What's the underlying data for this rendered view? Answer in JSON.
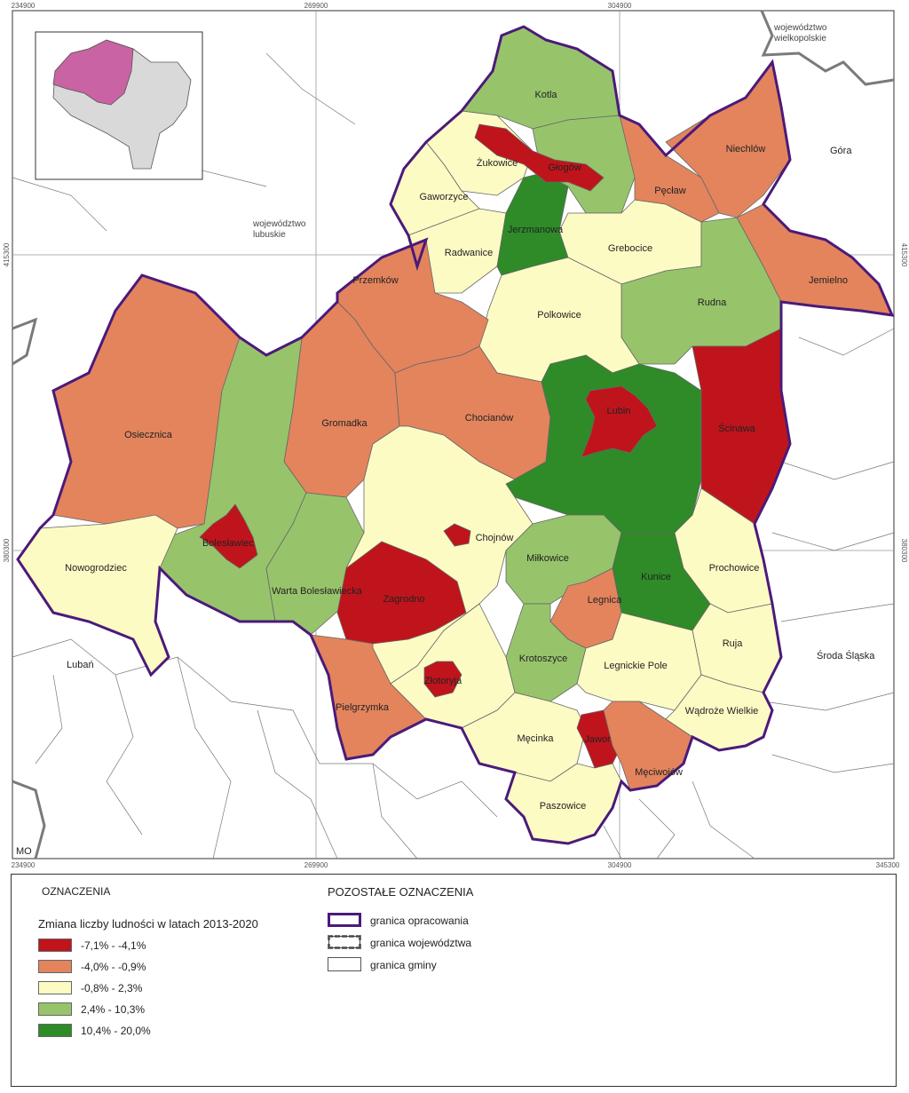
{
  "map": {
    "coords": {
      "top": [
        "234900",
        "269900",
        "304900"
      ],
      "bottom": [
        "234900",
        "269900",
        "304900",
        "345300"
      ],
      "left": [
        "415300",
        "380300"
      ],
      "right": [
        "415300",
        "380300"
      ]
    },
    "neighbor_labels": {
      "wielkopolskie": [
        "województwo",
        "wielkopolskie"
      ],
      "lubuskie": [
        "województwo",
        "lubuskie"
      ],
      "gora": "Góra",
      "luban": "Lubań",
      "sroda": "Środa Śląska",
      "mo": "MO"
    },
    "communes": {
      "kotla": "Kotla",
      "zukowice": "Żukowice",
      "glogow": "Głogów",
      "gaworzyce": "Gaworzyce",
      "jerzmanowa": "Jerzmanowa",
      "radwanice": "Radwanice",
      "grebocice": "Grebocice",
      "peclaw": "Pęcław",
      "niechlow": "Niechlów",
      "jemielno": "Jemielno",
      "rudna": "Rudna",
      "polkowice": "Polkowice",
      "przemkow": "Przemków",
      "osiecznica": "Osiecznica",
      "gromadka": "Gromadka",
      "chocianow": "Chocianów",
      "lubin": "Lubin",
      "scinawa": "Ścinawa",
      "boleslawiec": "Bolesławiec",
      "nowogrodziec": "Nowogrodziec",
      "warta": "Warta Bolesławiecka",
      "chojnow": "Chojnów",
      "zagrodno": "Zagrodno",
      "milkowice": "Miłkowice",
      "kunice": "Kunice",
      "prochowice": "Prochowice",
      "legnica": "Legnica",
      "ruja": "Ruja",
      "krotoszyce": "Krotoszyce",
      "legnickie_pole": "Legnickie Pole",
      "zlotoryja": "Złotoryja",
      "pielgrzymka": "Pielgrzymka",
      "wadroze": "Wądroże Wielkie",
      "mecinka": "Męcinka",
      "jawor": "Jawor",
      "msciwojow": "Męciwojów",
      "paszowice": "Paszowice"
    }
  },
  "legend": {
    "title": "OZNACZENIA",
    "subtitle": "Zmiana liczby ludności w latach 2013-2020",
    "classes": [
      {
        "label": "-7,1% - -4,1%",
        "color": "#c0141c"
      },
      {
        "label": "-4,0% - -0,9%",
        "color": "#e3845d"
      },
      {
        "label": "-0,8% - 2,3%",
        "color": "#fdfbc4"
      },
      {
        "label": "2,4% - 10,3%",
        "color": "#97c46b"
      },
      {
        "label": "10,4% - 20,0%",
        "color": "#2e8b28"
      }
    ],
    "other_title": "POZOSTAŁE OZNACZENIA",
    "other": [
      {
        "label": "granica opracowania",
        "icon": "study-boundary-swatch"
      },
      {
        "label": "granica województwa",
        "icon": "voivodeship-boundary-swatch"
      },
      {
        "label": "granica gminy",
        "icon": "commune-boundary-swatch"
      }
    ],
    "colors": {
      "study_boundary": "#4b1a7a",
      "voivodeship_boundary": "#777777",
      "inset_highlight": "#c963a3",
      "inset_region": "#d9d9d9"
    }
  }
}
